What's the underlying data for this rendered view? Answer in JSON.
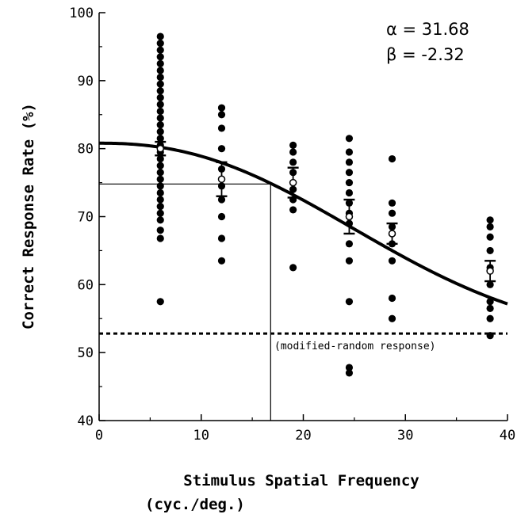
{
  "chart_data": {
    "type": "scatter",
    "xlabel_line1": "Stimulus Spatial Frequency",
    "xlabel_line2": "(cyc./deg.)",
    "ylabel": "Correct Response Rate (%)",
    "xlim": [
      0,
      40
    ],
    "ylim": [
      40,
      100
    ],
    "x_ticks": [
      "0",
      "10",
      "20",
      "30",
      "40"
    ],
    "y_ticks": [
      "40",
      "50",
      "60",
      "70",
      "80",
      "90",
      "100"
    ],
    "x_tick_values": [
      0,
      10,
      20,
      30,
      40
    ],
    "y_tick_values": [
      40,
      50,
      60,
      70,
      80,
      90,
      100
    ],
    "grid": false,
    "parameters": {
      "alpha_text": "α = 31.68",
      "beta_text": "β = -2.32",
      "alpha": 31.68,
      "beta": -2.32
    },
    "observations": [
      {
        "x": 6,
        "y": [
          57.5,
          66.8,
          68.0,
          69.5,
          70.5,
          71.5,
          72.5,
          73.5,
          74.5,
          75.5,
          76.5,
          77.5,
          78.5,
          79.5,
          80.5,
          81.5,
          82.5,
          83.5,
          84.5,
          85.5,
          86.5,
          87.5,
          88.5,
          89.5,
          90.5,
          91.5,
          92.5,
          93.5,
          94.5,
          95.5,
          96.5
        ]
      },
      {
        "x": 12,
        "y": [
          63.5,
          66.8,
          70.0,
          72.5,
          74.5,
          77.0,
          80.0,
          83.0,
          85.0,
          86.0
        ]
      },
      {
        "x": 19,
        "y": [
          62.5,
          71.0,
          72.5,
          74.0,
          76.5,
          78.0,
          79.5,
          80.5
        ]
      },
      {
        "x": 24.5,
        "y": [
          47.0,
          47.8,
          57.5,
          63.5,
          66.0,
          69.0,
          70.5,
          72.0,
          73.5,
          75.0,
          76.5,
          78.0,
          79.5,
          81.5
        ]
      },
      {
        "x": 28.7,
        "y": [
          55.0,
          58.0,
          63.5,
          66.0,
          67.5,
          68.5,
          70.5,
          72.0,
          78.5
        ]
      },
      {
        "x": 38.3,
        "y": [
          52.5,
          55.0,
          56.5,
          57.5,
          60.0,
          62.5,
          65.0,
          67.0,
          68.5,
          69.5
        ]
      }
    ],
    "means": [
      {
        "x": 6,
        "y": 80.0,
        "err": 1.0
      },
      {
        "x": 12,
        "y": 75.5,
        "err": 2.5
      },
      {
        "x": 19,
        "y": 75.0,
        "err": 2.2
      },
      {
        "x": 24.5,
        "y": 70.0,
        "err": 2.5
      },
      {
        "x": 28.7,
        "y": 67.5,
        "err": 1.5
      },
      {
        "x": 38.3,
        "y": 62.0,
        "err": 1.5
      }
    ],
    "threshold": {
      "x": 16.8,
      "y": 74.8
    },
    "random_response": {
      "y": 52.8,
      "label": "(modified-random response)"
    }
  }
}
